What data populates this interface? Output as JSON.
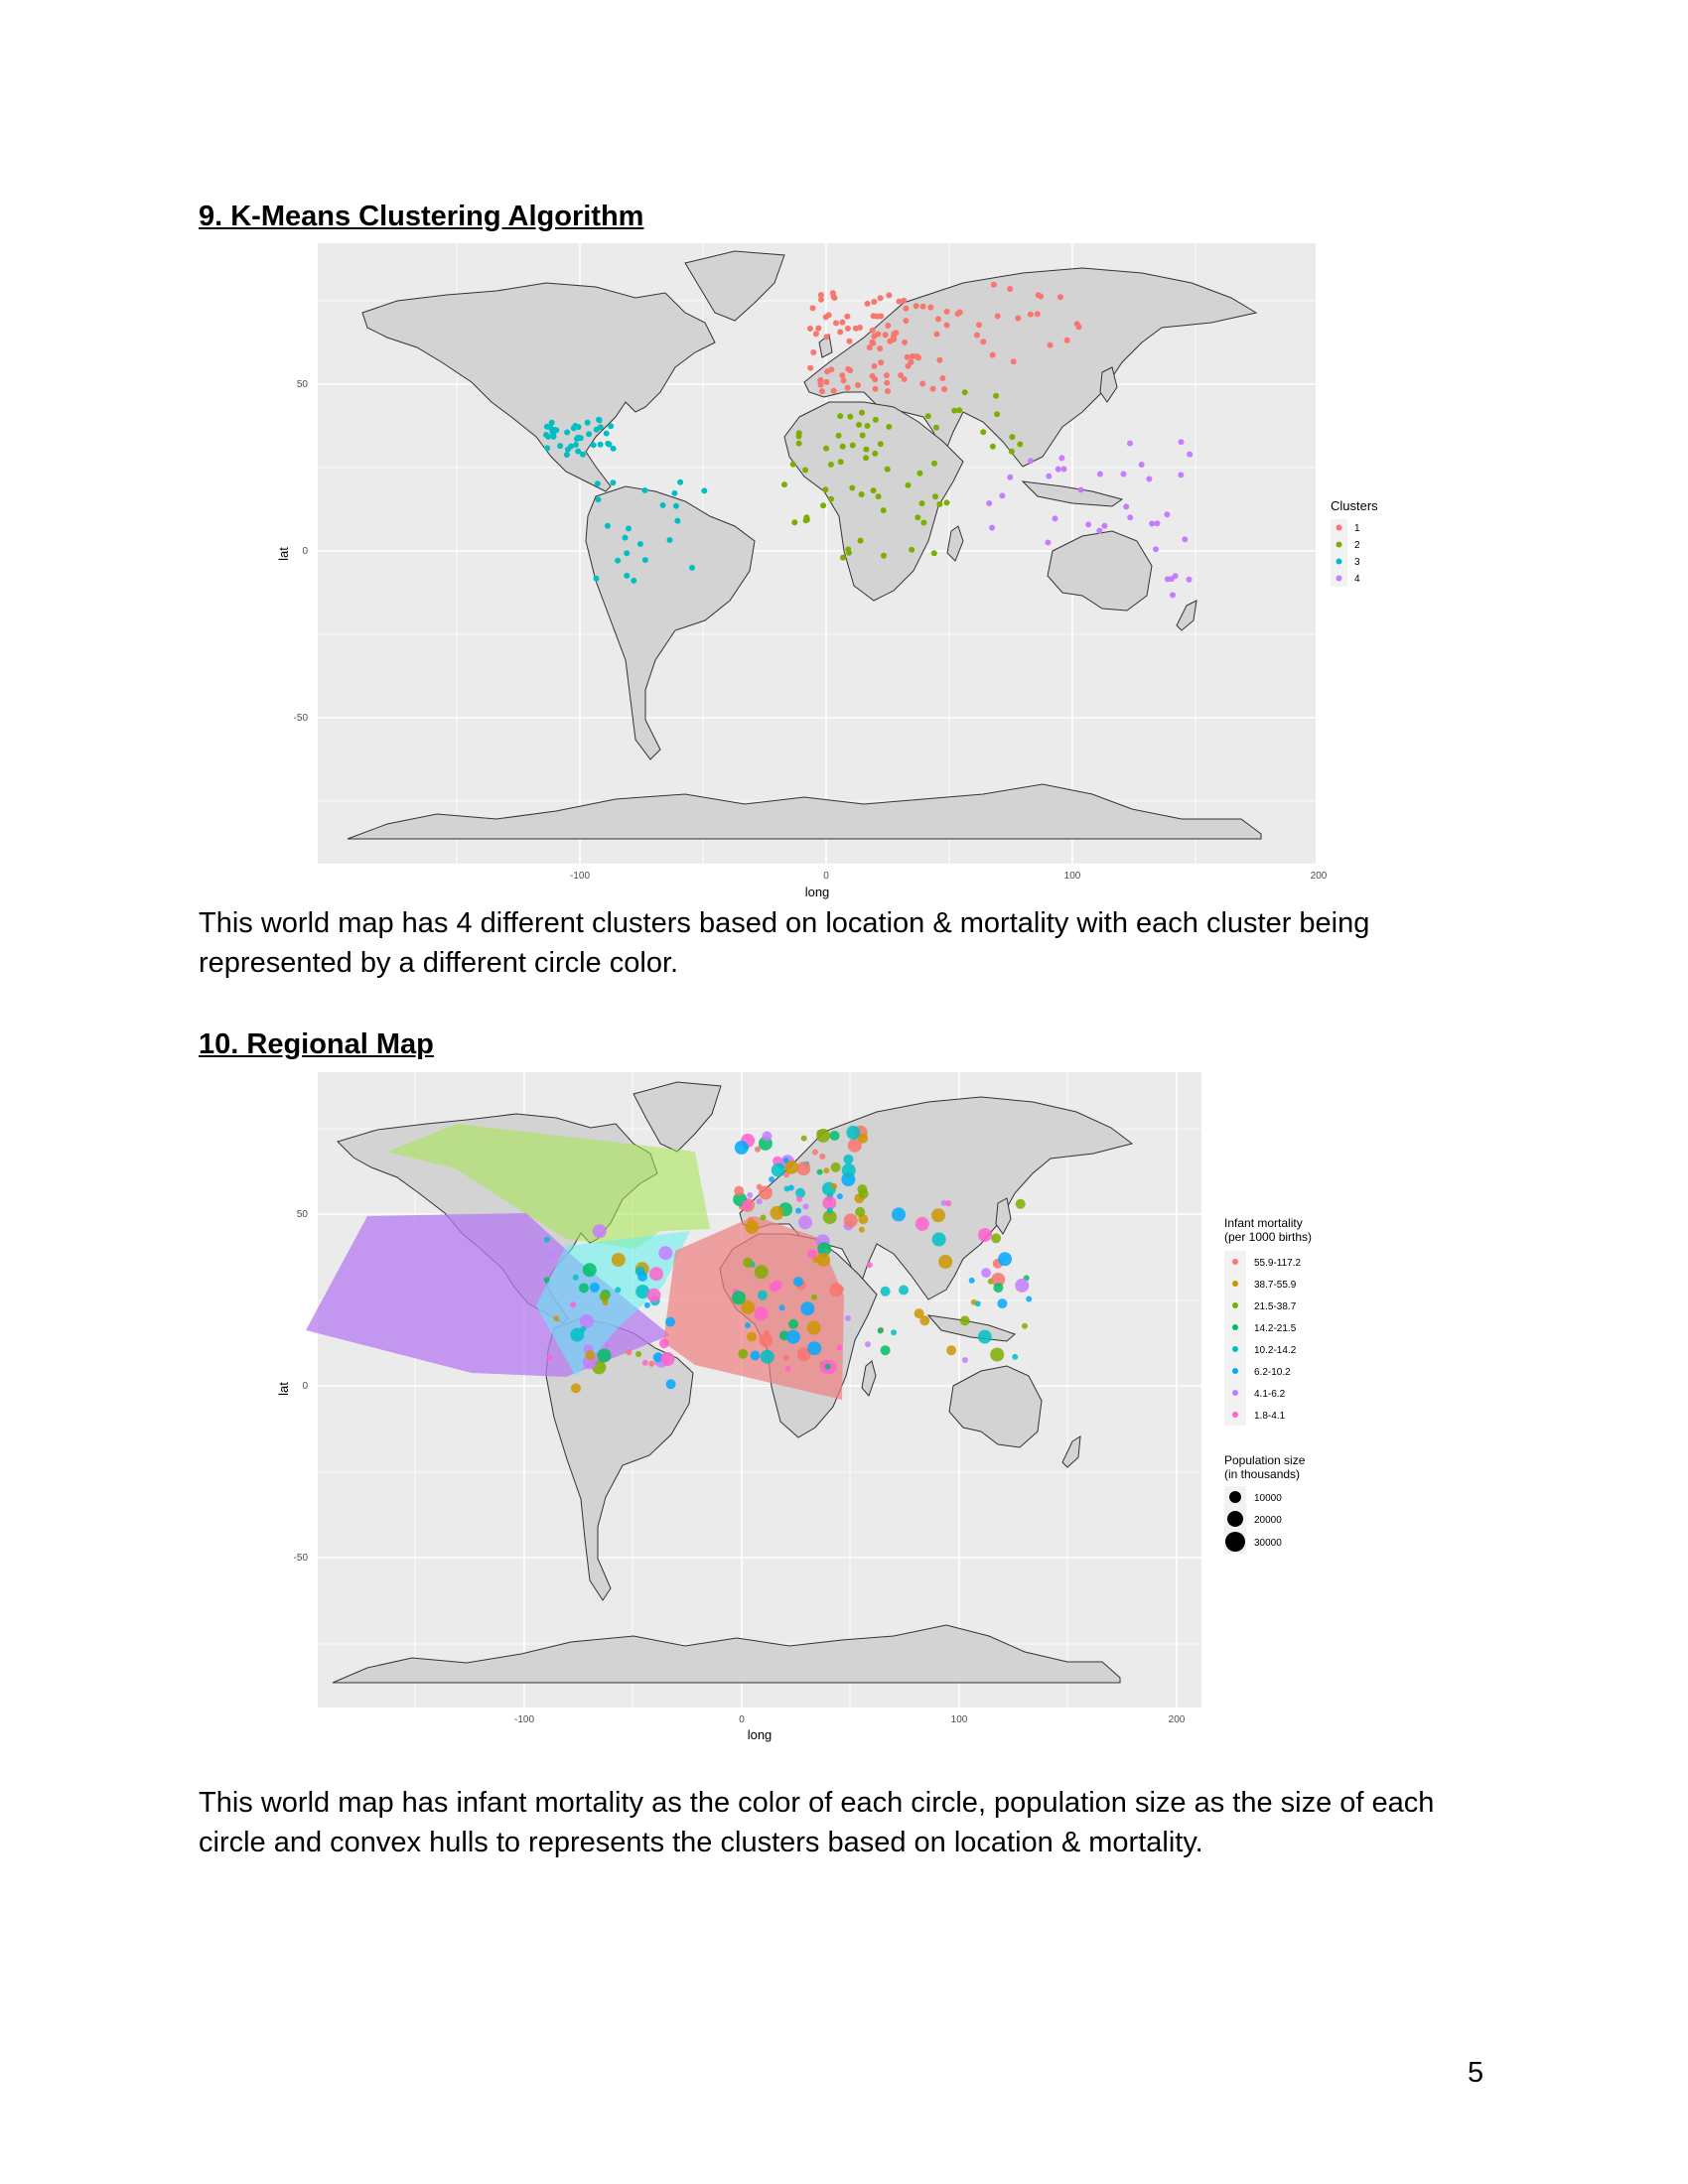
{
  "section9": {
    "heading": "9. K-Means Clustering Algorithm",
    "caption": "This world map has 4 different clusters based on location & mortality with each cluster being represented by a different circle color."
  },
  "section10": {
    "heading": "10. Regional Map",
    "caption": "This world map has infant mortality as the color of each circle, population size as the size of each circle and convex hulls to represents the clusters based on location & mortality."
  },
  "map1": {
    "x_label": "long",
    "y_label": "lat",
    "x_ticks": [
      "-100",
      "0",
      "100",
      "200"
    ],
    "y_ticks": [
      "50",
      "0",
      "-50"
    ],
    "legend_title": "Clusters",
    "legend": [
      {
        "label": "1",
        "color": "#F8766D"
      },
      {
        "label": "2",
        "color": "#7CAE00"
      },
      {
        "label": "3",
        "color": "#00BFC4"
      },
      {
        "label": "4",
        "color": "#C77CFF"
      }
    ]
  },
  "map2": {
    "x_label": "long",
    "y_label": "lat",
    "x_ticks": [
      "-100",
      "0",
      "100",
      "200"
    ],
    "y_ticks": [
      "50",
      "0",
      "-50"
    ],
    "color_legend_title_1": "Infant mortality",
    "color_legend_title_2": "(per 1000 births)",
    "color_legend": [
      {
        "label": "55.9-117.2",
        "color": "#F8766D"
      },
      {
        "label": "38.7-55.9",
        "color": "#CD9600"
      },
      {
        "label": "21.5-38.7",
        "color": "#7CAE00"
      },
      {
        "label": "14.2-21.5",
        "color": "#00BE67"
      },
      {
        "label": "10.2-14.2",
        "color": "#00BFC4"
      },
      {
        "label": "6.2-10.2",
        "color": "#00A9FF"
      },
      {
        "label": "4.1-6.2",
        "color": "#C77CFF"
      },
      {
        "label": "1.8-4.1",
        "color": "#FF61CC"
      }
    ],
    "size_legend_title_1": "Population size",
    "size_legend_title_2": "(in thousands)",
    "size_legend": [
      "10000",
      "20000",
      "30000"
    ]
  },
  "page_number": "5"
}
